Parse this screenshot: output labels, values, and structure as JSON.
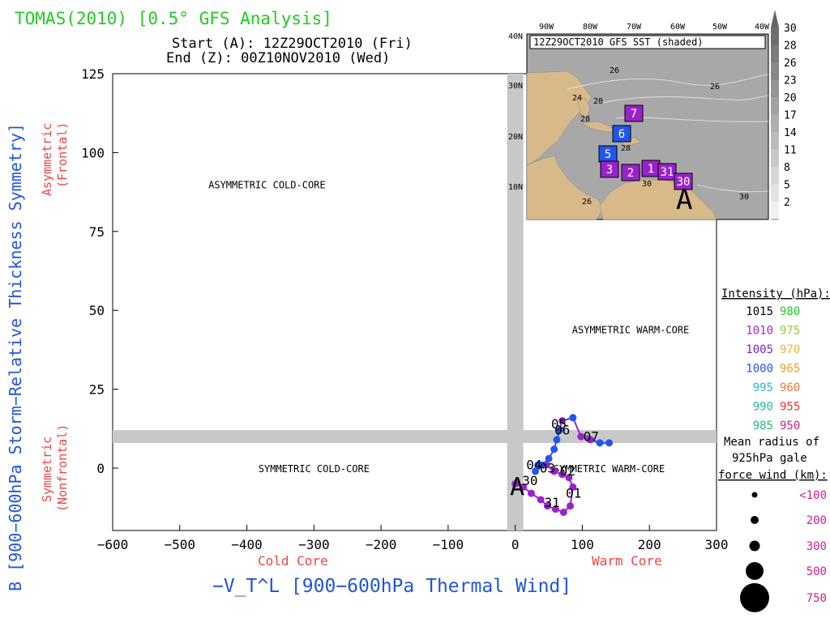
{
  "header": {
    "title": "TOMAS(2010) [0.5° GFS Analysis]",
    "start": "Start (A): 12Z29OCT2010 (Fri)",
    "end": "End (Z): 00Z10NOV2010 (Wed)"
  },
  "colors": {
    "title_green": "#22cc22",
    "axis_blue": "#2255dd",
    "label_red": "#ee4444",
    "track_purple": "#9922cc",
    "track_blue": "#2255ee",
    "land_tan": "#d8b98a",
    "ocean_gray": "#a8a8a8"
  },
  "chart_data": {
    "type": "scatter",
    "xlabel": "−V_T^L [900−600hPa Thermal Wind]",
    "ylabel": "B [900−600hPa Storm−Relative Thickness Symmetry]",
    "xlim": [
      -600,
      300
    ],
    "ylim": [
      -20,
      125
    ],
    "x_ticks": [
      -600,
      -500,
      -400,
      -300,
      -200,
      -100,
      0,
      100,
      200,
      300
    ],
    "x_tick_labels": [
      "−600",
      "−500",
      "−400",
      "−300",
      "−200",
      "−100",
      "0",
      "100",
      "200",
      "300"
    ],
    "y_ticks": [
      0,
      25,
      50,
      75,
      100,
      125
    ],
    "y_tick_labels": [
      "0",
      "25",
      "50",
      "75",
      "100",
      "125"
    ],
    "x_side_labels": {
      "left": "Cold Core",
      "right": "Warm Core"
    },
    "y_side_labels": {
      "upper": [
        "Asymmetric",
        "(Frontal)"
      ],
      "lower": [
        "Symmetric",
        "(Nonfrontal)"
      ]
    },
    "quadrants": [
      {
        "label": "ASYMMETRIC COLD-CORE",
        "x": -370,
        "y": 90
      },
      {
        "label": "ASYMMETRIC WARM-CORE",
        "x": 172,
        "y": 44
      },
      {
        "label": "SYMMETRIC COLD-CORE",
        "x": -300,
        "y": 0
      },
      {
        "label": "SYMMETRIC WARM-CORE",
        "x": 140,
        "y": 0
      }
    ],
    "threshold_x": 0,
    "threshold_y": 10,
    "track": [
      {
        "x": 0,
        "y": -5,
        "c": "#9922cc"
      },
      {
        "x": 12,
        "y": -6,
        "c": "#9922cc"
      },
      {
        "x": 24,
        "y": -8,
        "c": "#9922cc"
      },
      {
        "x": 38,
        "y": -10,
        "c": "#9922cc"
      },
      {
        "x": 48,
        "y": -12,
        "c": "#9922cc"
      },
      {
        "x": 60,
        "y": -13,
        "c": "#9922cc"
      },
      {
        "x": 72,
        "y": -14,
        "c": "#9922cc"
      },
      {
        "x": 82,
        "y": -12,
        "c": "#9922cc"
      },
      {
        "x": 86,
        "y": -6,
        "c": "#9922cc"
      },
      {
        "x": 80,
        "y": -3,
        "c": "#9922cc"
      },
      {
        "x": 70,
        "y": -2,
        "c": "#9922cc"
      },
      {
        "x": 58,
        "y": -1,
        "c": "#9922cc"
      },
      {
        "x": 46,
        "y": 1,
        "c": "#9922cc"
      },
      {
        "x": 34,
        "y": 1,
        "c": "#2255ee"
      },
      {
        "x": 30,
        "y": -1,
        "c": "#2255ee"
      },
      {
        "x": 40,
        "y": 1,
        "c": "#2255ee"
      },
      {
        "x": 50,
        "y": 3,
        "c": "#2255ee"
      },
      {
        "x": 58,
        "y": 6,
        "c": "#2255ee"
      },
      {
        "x": 62,
        "y": 9,
        "c": "#2255ee"
      },
      {
        "x": 66,
        "y": 12,
        "c": "#2255ee"
      },
      {
        "x": 70,
        "y": 15,
        "c": "#9922cc"
      },
      {
        "x": 86,
        "y": 16,
        "c": "#2255ee"
      },
      {
        "x": 98,
        "y": 10,
        "c": "#9922cc"
      },
      {
        "x": 112,
        "y": 9,
        "c": "#9922cc"
      },
      {
        "x": 126,
        "y": 8,
        "c": "#2255ee"
      },
      {
        "x": 140,
        "y": 8,
        "c": "#2255ee"
      }
    ],
    "track_labels": [
      {
        "text": "A",
        "x": 3,
        "y": -6,
        "size": "large"
      },
      {
        "text": "30",
        "x": 22,
        "y": -4,
        "size": "normal"
      },
      {
        "text": "31",
        "x": 55,
        "y": -11,
        "size": "normal"
      },
      {
        "text": "01",
        "x": 87,
        "y": -8,
        "size": "normal"
      },
      {
        "text": "02",
        "x": 78,
        "y": -1,
        "size": "normal"
      },
      {
        "text": "04",
        "x": 28,
        "y": 1,
        "size": "normal"
      },
      {
        "text": "03",
        "x": 48,
        "y": 0,
        "size": "normal"
      },
      {
        "text": "05",
        "x": 65,
        "y": 14,
        "size": "normal"
      },
      {
        "text": "06",
        "x": 70,
        "y": 12,
        "size": "normal"
      },
      {
        "text": "07",
        "x": 113,
        "y": 10,
        "size": "normal"
      }
    ]
  },
  "inset": {
    "title": "12Z29OCT2010 GFS SST (shaded)",
    "lon_labels": [
      "90W",
      "80W",
      "70W",
      "60W",
      "50W",
      "40W"
    ],
    "lat_labels": [
      "40N",
      "30N",
      "20N",
      "10N"
    ],
    "sst_contour_labels": [
      "26",
      "26",
      "28",
      "28",
      "30",
      "26",
      "28",
      "30",
      "24"
    ],
    "position_boxes": [
      {
        "text": "7",
        "c": "#9922cc"
      },
      {
        "text": "6",
        "c": "#2255ee"
      },
      {
        "text": "5",
        "c": "#2255ee"
      },
      {
        "text": "3",
        "c": "#9922cc"
      },
      {
        "text": "2",
        "c": "#9922cc"
      },
      {
        "text": "1",
        "c": "#9922cc"
      },
      {
        "text": "31",
        "c": "#9922cc"
      },
      {
        "text": "30",
        "c": "#9922cc"
      }
    ],
    "start_marker": "A"
  },
  "sst_scale": {
    "values": [
      "30",
      "28",
      "26",
      "23",
      "20",
      "17",
      "14",
      "11",
      "8",
      "5",
      "2"
    ]
  },
  "intensity_legend": {
    "title": "Intensity (hPa):",
    "rows": [
      {
        "left": "1015",
        "left_color": "#000000",
        "right": "980",
        "right_color": "#22cc22"
      },
      {
        "left": "1010",
        "left_color": "#aa22cc",
        "right": "975",
        "right_color": "#99cc33"
      },
      {
        "left": "1005",
        "left_color": "#7722cc",
        "right": "970",
        "right_color": "#ddbb33"
      },
      {
        "left": "1000",
        "left_color": "#2255ee",
        "right": "965",
        "right_color": "#ee9933"
      },
      {
        "left": "995",
        "left_color": "#22bbdd",
        "right": "960",
        "right_color": "#ee7733"
      },
      {
        "left": "990",
        "left_color": "#22bbaa",
        "right": "955",
        "right_color": "#ee3333"
      },
      {
        "left": "985",
        "left_color": "#22bb77",
        "right": "950",
        "right_color": "#cc2288"
      }
    ]
  },
  "radius_legend": {
    "title": [
      "Mean radius of",
      "925hPa gale",
      "force wind (km):"
    ],
    "entries": [
      {
        "label": "<100",
        "r": 100
      },
      {
        "label": "200",
        "r": 200
      },
      {
        "label": "300",
        "r": 300
      },
      {
        "label": "500",
        "r": 500
      },
      {
        "label": "750",
        "r": 750
      }
    ]
  }
}
